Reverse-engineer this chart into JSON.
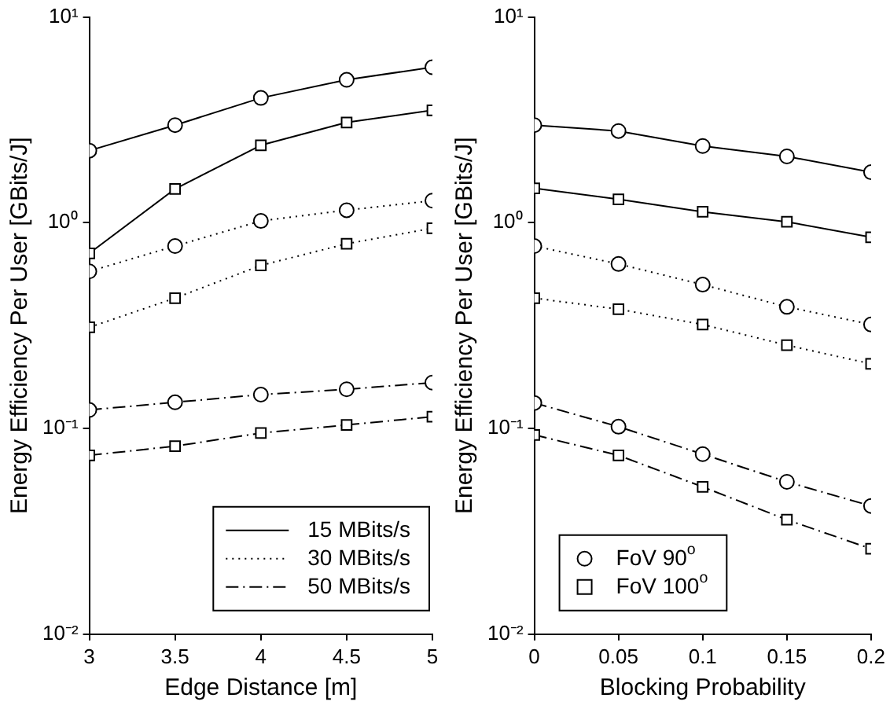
{
  "chart_data": [
    {
      "type": "line",
      "xlabel": "Edge Distance [m]",
      "ylabel": "Energy Efficiency Per User [GBits/J]",
      "x": [
        3,
        3.5,
        4,
        4.5,
        5
      ],
      "xlim": [
        3,
        5
      ],
      "xticks": [
        3,
        3.5,
        4,
        4.5,
        5
      ],
      "log": "y",
      "ylim": [
        0.01,
        10
      ],
      "yticks": [
        {
          "value": 0.01,
          "label": "10⁻²"
        },
        {
          "value": 0.1,
          "label": "10⁻¹"
        },
        {
          "value": 1,
          "label": "10⁰"
        },
        {
          "value": 10,
          "label": "10¹"
        }
      ],
      "grid": false,
      "legend": "bottom right",
      "series": [
        {
          "name": "15 MBits/s",
          "color": "#000000",
          "marker": "circle",
          "line_style": "solid",
          "values": [
            2.24,
            2.98,
            4.04,
            4.95,
            5.7
          ]
        },
        {
          "color": "#000000",
          "marker": "square",
          "line_style": "solid",
          "values": [
            0.71,
            1.46,
            2.38,
            3.07,
            3.52
          ]
        },
        {
          "name": "30 MBits/s",
          "color": "#000000",
          "marker": "circle",
          "line_style": "dotted",
          "values": [
            0.58,
            0.77,
            1.02,
            1.15,
            1.28
          ]
        },
        {
          "color": "#000000",
          "marker": "square",
          "line_style": "dotted",
          "values": [
            0.31,
            0.43,
            0.62,
            0.79,
            0.94
          ]
        },
        {
          "name": "50 MBits/s",
          "color": "#000000",
          "marker": "circle",
          "line_style": "dashdot",
          "values": [
            0.123,
            0.134,
            0.146,
            0.155,
            0.167
          ]
        },
        {
          "color": "#000000",
          "marker": "square",
          "line_style": "dashdot",
          "values": [
            0.074,
            0.082,
            0.095,
            0.104,
            0.114
          ]
        }
      ]
    },
    {
      "type": "line",
      "xlabel": "Blocking Probability",
      "ylabel": "Energy Efficiency Per User [GBits/J]",
      "x": [
        0,
        0.05,
        0.1,
        0.15,
        0.2
      ],
      "xlim": [
        0,
        0.2
      ],
      "xticks": [
        0,
        0.05,
        0.1,
        0.15,
        0.2
      ],
      "log": "y",
      "ylim": [
        0.01,
        10
      ],
      "yticks": [
        {
          "value": 0.01,
          "label": "10⁻²"
        },
        {
          "value": 0.1,
          "label": "10⁻¹"
        },
        {
          "value": 1,
          "label": "10⁰"
        },
        {
          "value": 10,
          "label": "10¹"
        }
      ],
      "grid": false,
      "legend": "bottom left",
      "series": [
        {
          "name": "FoV 90$^{o}$",
          "color": "#000000",
          "marker": "circle",
          "line_style": "solid",
          "values": [
            2.98,
            2.79,
            2.36,
            2.1,
            1.76
          ]
        },
        {
          "name": "FoV 100$^{o}$",
          "color": "#000000",
          "marker": "square",
          "line_style": "solid",
          "values": [
            1.47,
            1.3,
            1.13,
            1.01,
            0.85
          ]
        },
        {
          "color": "#000000",
          "marker": "circle",
          "line_style": "dotted",
          "values": [
            0.77,
            0.63,
            0.5,
            0.39,
            0.32
          ]
        },
        {
          "color": "#000000",
          "marker": "square",
          "line_style": "dotted",
          "values": [
            0.43,
            0.38,
            0.32,
            0.254,
            0.206
          ]
        },
        {
          "color": "#000000",
          "marker": "circle",
          "line_style": "dashdot",
          "values": [
            0.133,
            0.102,
            0.075,
            0.055,
            0.042
          ]
        },
        {
          "color": "#000000",
          "marker": "square",
          "line_style": "dashdot",
          "values": [
            0.093,
            0.074,
            0.052,
            0.036,
            0.026
          ]
        }
      ]
    }
  ]
}
